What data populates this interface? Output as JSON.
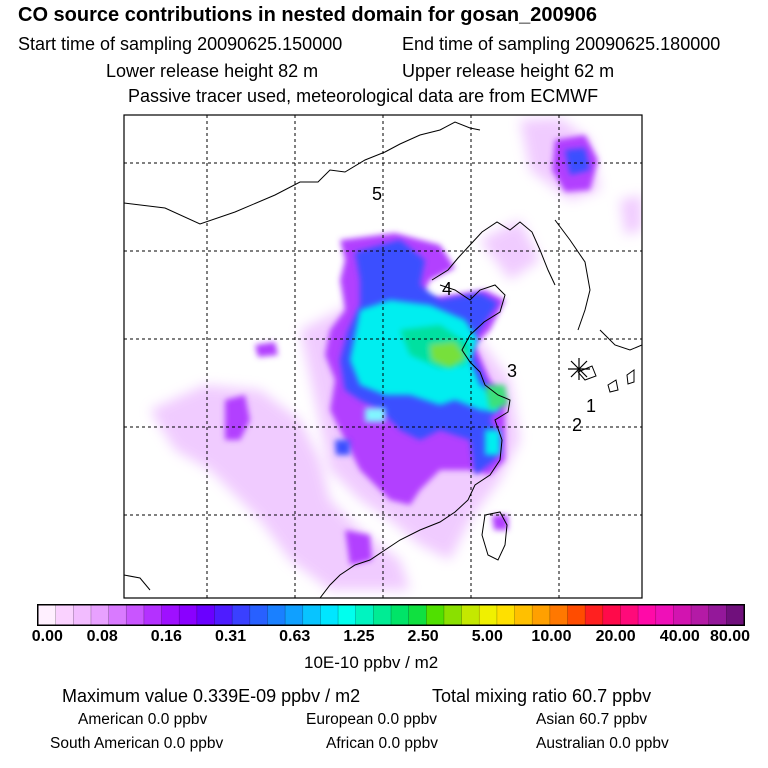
{
  "header": {
    "title": "CO  source contributions in nested domain for gosan_200906",
    "start_label": "Start time of sampling 20090625.150000",
    "end_label": "End time of sampling 20090625.180000",
    "lower_label": "Lower release height   82 m",
    "upper_label": "Upper release height   62 m",
    "note": "Passive tracer used, meteorological data are from ECMWF"
  },
  "map": {
    "markers": [
      "1",
      "2",
      "3",
      "4",
      "5"
    ],
    "release_site_symbol": "asterisk-icon",
    "colors": {
      "purple": "#a600ff",
      "blue": "#3355ff",
      "cyan": "#00ffee",
      "green": "#66dd33",
      "lightpurple": "#e9b3ff"
    }
  },
  "colorbar": {
    "tick_labels": [
      "0.00",
      "0.08",
      "0.16",
      "0.31",
      "0.63",
      "1.25",
      "2.50",
      "5.00",
      "10.00",
      "20.00",
      "40.00",
      "80.00"
    ],
    "unit": "10E-10 ppbv / m2",
    "colors": [
      "#fff0ff",
      "#fad2ff",
      "#f2bcff",
      "#e8a1ff",
      "#d97aff",
      "#c955ff",
      "#b431ff",
      "#9f10ff",
      "#8a00ff",
      "#6a00ff",
      "#4e1cff",
      "#3a40ff",
      "#2860ff",
      "#1a80ff",
      "#10a0ff",
      "#08c4ff",
      "#00e6ff",
      "#00ffee",
      "#00f4c0",
      "#00ec94",
      "#00e468",
      "#10e040",
      "#50e000",
      "#8ae000",
      "#c4e800",
      "#f0f000",
      "#ffe000",
      "#ffc000",
      "#ffa000",
      "#ff7800",
      "#ff4c00",
      "#ff2020",
      "#ff0a4a",
      "#ff0a7a",
      "#ff0aa8",
      "#ef10b8",
      "#d214b0",
      "#b41aa6",
      "#94189a",
      "#70107c"
    ]
  },
  "footer": {
    "max_label": "Maximum value  0.339E-09 ppbv / m2",
    "total_label": "Total mixing ratio       60.7 ppbv",
    "american": "American         0.0 ppbv",
    "european": "European        0.0 ppbv",
    "asian": "Asian      60.7 ppbv",
    "south_american": "South American         0.0 ppbv",
    "african": "African         0.0 ppbv",
    "australian": "Australian         0.0 ppbv"
  }
}
